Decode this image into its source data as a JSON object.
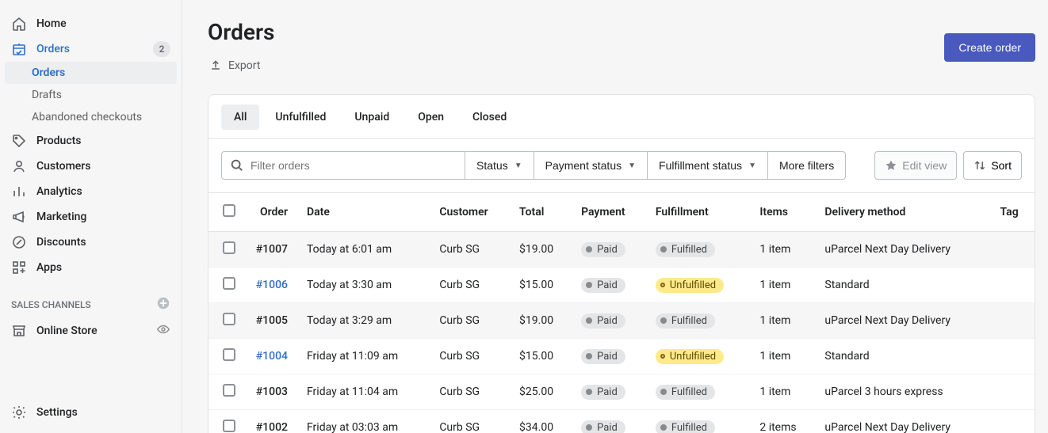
{
  "sidebar": {
    "nav": [
      {
        "key": "home",
        "label": "Home",
        "icon": "home"
      },
      {
        "key": "orders",
        "label": "Orders",
        "icon": "orders",
        "active": true,
        "badge": "2",
        "children": [
          {
            "key": "orders-sub",
            "label": "Orders",
            "selected": true
          },
          {
            "key": "drafts",
            "label": "Drafts"
          },
          {
            "key": "abandoned",
            "label": "Abandoned checkouts"
          }
        ]
      },
      {
        "key": "products",
        "label": "Products",
        "icon": "tag"
      },
      {
        "key": "customers",
        "label": "Customers",
        "icon": "person"
      },
      {
        "key": "analytics",
        "label": "Analytics",
        "icon": "bars"
      },
      {
        "key": "marketing",
        "label": "Marketing",
        "icon": "megaphone"
      },
      {
        "key": "discounts",
        "label": "Discounts",
        "icon": "discount"
      },
      {
        "key": "apps",
        "label": "Apps",
        "icon": "apps"
      }
    ],
    "channels_header": "SALES CHANNELS",
    "channels": [
      {
        "key": "online-store",
        "label": "Online Store",
        "icon": "store",
        "trailing": "eye"
      }
    ],
    "settings": {
      "label": "Settings",
      "icon": "gear"
    }
  },
  "page": {
    "title": "Orders",
    "create_button": "Create order",
    "export_label": "Export"
  },
  "tabs": [
    {
      "key": "all",
      "label": "All",
      "active": true
    },
    {
      "key": "unfulfilled",
      "label": "Unfulfilled"
    },
    {
      "key": "unpaid",
      "label": "Unpaid"
    },
    {
      "key": "open",
      "label": "Open"
    },
    {
      "key": "closed",
      "label": "Closed"
    }
  ],
  "filters": {
    "search_placeholder": "Filter orders",
    "status": "Status",
    "payment": "Payment status",
    "fulfillment": "Fulfillment status",
    "more": "More filters",
    "edit_view": "Edit view",
    "sort": "Sort"
  },
  "table": {
    "columns": [
      "Order",
      "Date",
      "Customer",
      "Total",
      "Payment",
      "Fulfillment",
      "Items",
      "Delivery method",
      "Tag"
    ],
    "rows": [
      {
        "order": "#1007",
        "link": false,
        "date": "Today at 6:01 am",
        "customer": "Curb SG",
        "total": "$19.00",
        "payment": "Paid",
        "fulfillment": "Fulfilled",
        "items": "1 item",
        "delivery": "uParcel Next Day Delivery",
        "highlight": true
      },
      {
        "order": "#1006",
        "link": true,
        "date": "Today at 3:30 am",
        "customer": "Curb SG",
        "total": "$15.00",
        "payment": "Paid",
        "fulfillment": "Unfulfilled",
        "items": "1 item",
        "delivery": "Standard"
      },
      {
        "order": "#1005",
        "link": false,
        "date": "Today at 3:29 am",
        "customer": "Curb SG",
        "total": "$19.00",
        "payment": "Paid",
        "fulfillment": "Fulfilled",
        "items": "1 item",
        "delivery": "uParcel Next Day Delivery",
        "highlight": true
      },
      {
        "order": "#1004",
        "link": true,
        "date": "Friday at 11:09 am",
        "customer": "Curb SG",
        "total": "$15.00",
        "payment": "Paid",
        "fulfillment": "Unfulfilled",
        "items": "1 item",
        "delivery": "Standard"
      },
      {
        "order": "#1003",
        "link": false,
        "date": "Friday at 11:04 am",
        "customer": "Curb SG",
        "total": "$25.00",
        "payment": "Paid",
        "fulfillment": "Fulfilled",
        "items": "1 item",
        "delivery": "uParcel 3 hours express"
      },
      {
        "order": "#1002",
        "link": false,
        "date": "Friday at 03:03 am",
        "customer": "Curb SG",
        "total": "$34.00",
        "payment": "Paid",
        "fulfillment": "Fulfilled",
        "items": "2 items",
        "delivery": "uParcel Next Day Delivery"
      }
    ]
  },
  "colors": {
    "accent": "#4959bd",
    "link": "#2c6ecb",
    "pill_gray_bg": "#e4e5e7",
    "pill_yellow_bg": "#ffea8a"
  }
}
